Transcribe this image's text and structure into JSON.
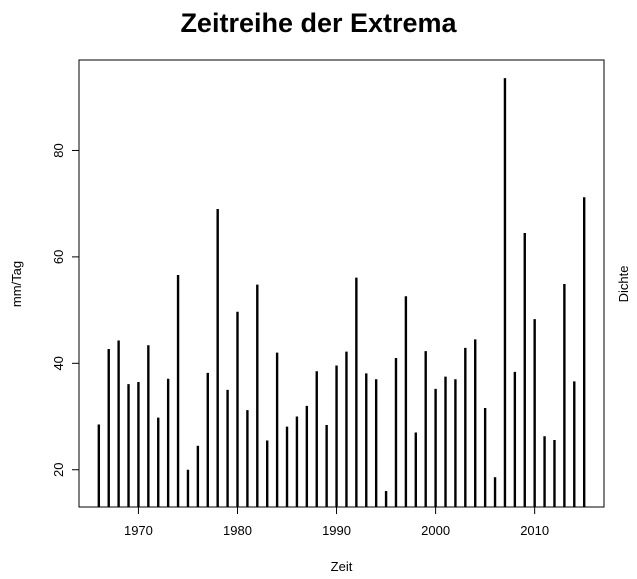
{
  "chart_data": {
    "type": "bar",
    "style": "vertical-spikes",
    "title": "Zeitreihe der Extrema",
    "xlabel": "Zeit",
    "ylabel": "mm/Tag",
    "right_label": "Dichte",
    "xlim": [
      1964,
      2017
    ],
    "ylim": [
      13,
      97
    ],
    "baseline": 13,
    "xticks": [
      1970,
      1980,
      1990,
      2000,
      2010
    ],
    "yticks": [
      20,
      40,
      60,
      80
    ],
    "grid": false,
    "legend": "none",
    "x": [
      1966,
      1967,
      1968,
      1969,
      1970,
      1971,
      1972,
      1973,
      1974,
      1975,
      1976,
      1977,
      1978,
      1979,
      1980,
      1981,
      1982,
      1983,
      1984,
      1985,
      1986,
      1987,
      1988,
      1989,
      1990,
      1991,
      1992,
      1993,
      1994,
      1995,
      1996,
      1997,
      1998,
      1999,
      2000,
      2001,
      2002,
      2003,
      2004,
      2005,
      2006,
      2007,
      2008,
      2009,
      2010,
      2011,
      2012,
      2013,
      2014,
      2015
    ],
    "values": [
      28.5,
      42.7,
      44.3,
      36.1,
      36.5,
      43.4,
      29.8,
      37.1,
      56.6,
      20.0,
      24.5,
      38.2,
      69.0,
      35.0,
      49.7,
      31.2,
      54.8,
      25.5,
      42.0,
      28.1,
      30.0,
      32.0,
      38.5,
      28.4,
      39.6,
      42.2,
      56.1,
      38.1,
      37.0,
      16.0,
      41.0,
      52.6,
      27.0,
      42.3,
      35.2,
      37.5,
      37.0,
      42.9,
      44.5,
      31.6,
      18.6,
      93.6,
      38.4,
      64.5,
      48.3,
      26.3,
      25.6,
      54.9,
      36.6,
      71.2
    ],
    "color": "#000000"
  }
}
